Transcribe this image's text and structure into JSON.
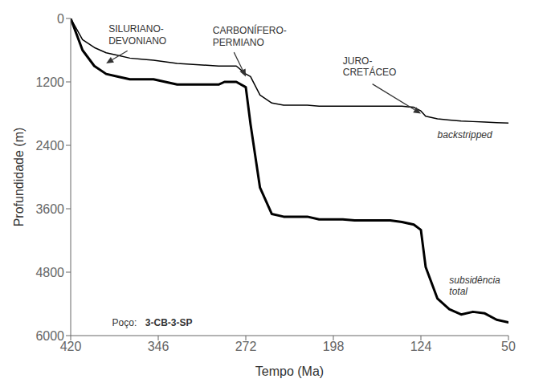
{
  "chart_data": {
    "type": "line",
    "xlabel": "Tempo (Ma)",
    "ylabel": "Profundidade (m)",
    "xlim": [
      420,
      50
    ],
    "ylim": [
      6000,
      0
    ],
    "xticks": [
      420,
      346,
      272,
      198,
      124,
      50
    ],
    "yticks": [
      0,
      1200,
      2400,
      3600,
      4800,
      6000
    ],
    "grid": false,
    "x": [
      420,
      415,
      410,
      400,
      390,
      380,
      370,
      360,
      350,
      340,
      330,
      295,
      290,
      280,
      272,
      268,
      260,
      250,
      240,
      230,
      220,
      210,
      200,
      190,
      180,
      170,
      160,
      150,
      140,
      130,
      124,
      120,
      110,
      100,
      90,
      80,
      70,
      60,
      50
    ],
    "series": [
      {
        "color": "#000000",
        "values": [
          0,
          300,
          600,
          900,
          1050,
          1100,
          1150,
          1150,
          1150,
          1200,
          1250,
          1250,
          1200,
          1200,
          1300,
          2000,
          3200,
          3700,
          3750,
          3750,
          3750,
          3800,
          3800,
          3800,
          3820,
          3820,
          3820,
          3820,
          3850,
          3900,
          4000,
          4700,
          5300,
          5500,
          5600,
          5550,
          5580,
          5700,
          5750
        ]
      },
      {
        "color": "#000000",
        "values": [
          0,
          200,
          400,
          550,
          650,
          700,
          750,
          770,
          790,
          820,
          850,
          900,
          900,
          900,
          1050,
          1100,
          1450,
          1600,
          1640,
          1640,
          1640,
          1660,
          1660,
          1660,
          1660,
          1660,
          1660,
          1660,
          1660,
          1680,
          1750,
          1850,
          1900,
          1920,
          1940,
          1950,
          1960,
          1970,
          1980
        ]
      }
    ],
    "annotations": [
      {
        "text": "SILURIANO-\nDEVONIANO",
        "xy": [
          390,
          850
        ]
      },
      {
        "text": "CARBONÍFERO-\nPERMIANO",
        "xy": [
          272,
          1100
        ]
      },
      {
        "text": "JURO-\nCRETÁCEO",
        "xy": [
          124,
          1800
        ]
      },
      {
        "text": "backstripped"
      },
      {
        "text": "subsidência\ntotal"
      },
      {
        "text": "Poço:"
      },
      {
        "text": "3-CB-3-SP"
      }
    ]
  }
}
